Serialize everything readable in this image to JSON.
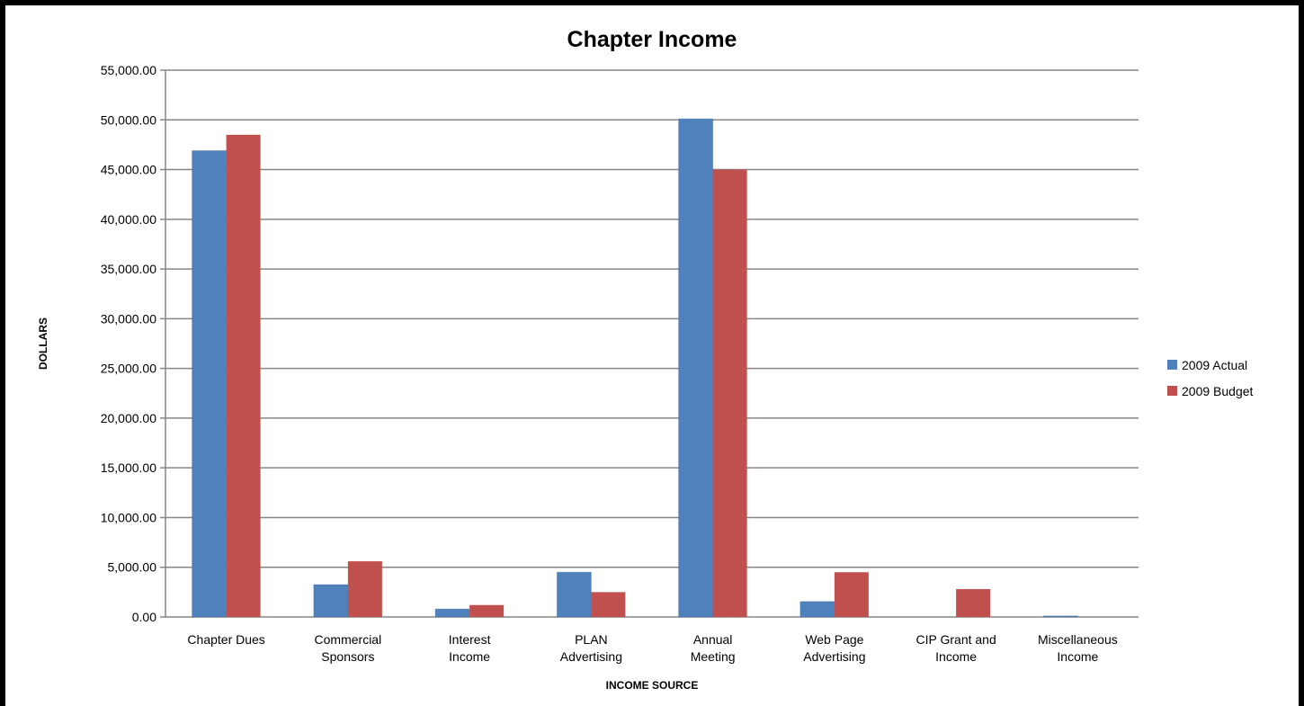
{
  "chart_data": {
    "type": "bar",
    "title": "Chapter Income",
    "xlabel": "INCOME SOURCE",
    "ylabel": "DOLLARS",
    "ylim": [
      0,
      55000
    ],
    "ytick_step": 5000,
    "ytick_labels": [
      "0.00",
      "5,000.00",
      "10,000.00",
      "15,000.00",
      "20,000.00",
      "25,000.00",
      "30,000.00",
      "35,000.00",
      "40,000.00",
      "45,000.00",
      "50,000.00",
      "55,000.00"
    ],
    "grid": true,
    "legend_position": "right",
    "categories": [
      [
        "Chapter Dues"
      ],
      [
        "Commercial",
        "Sponsors"
      ],
      [
        "Interest",
        "Income"
      ],
      [
        "PLAN",
        "Advertising"
      ],
      [
        "Annual",
        "Meeting"
      ],
      [
        "Web Page",
        "Advertising"
      ],
      [
        "CIP Grant and",
        "Income"
      ],
      [
        "Miscellaneous",
        "Income"
      ]
    ],
    "series": [
      {
        "name": "2009 Actual",
        "color": "#4f81bd",
        "values": [
          46900,
          3250,
          800,
          4500,
          50100,
          1550,
          0,
          100
        ]
      },
      {
        "name": "2009 Budget",
        "color": "#c0504d",
        "values": [
          48500,
          5600,
          1200,
          2500,
          45000,
          4500,
          2800,
          0
        ]
      }
    ]
  }
}
